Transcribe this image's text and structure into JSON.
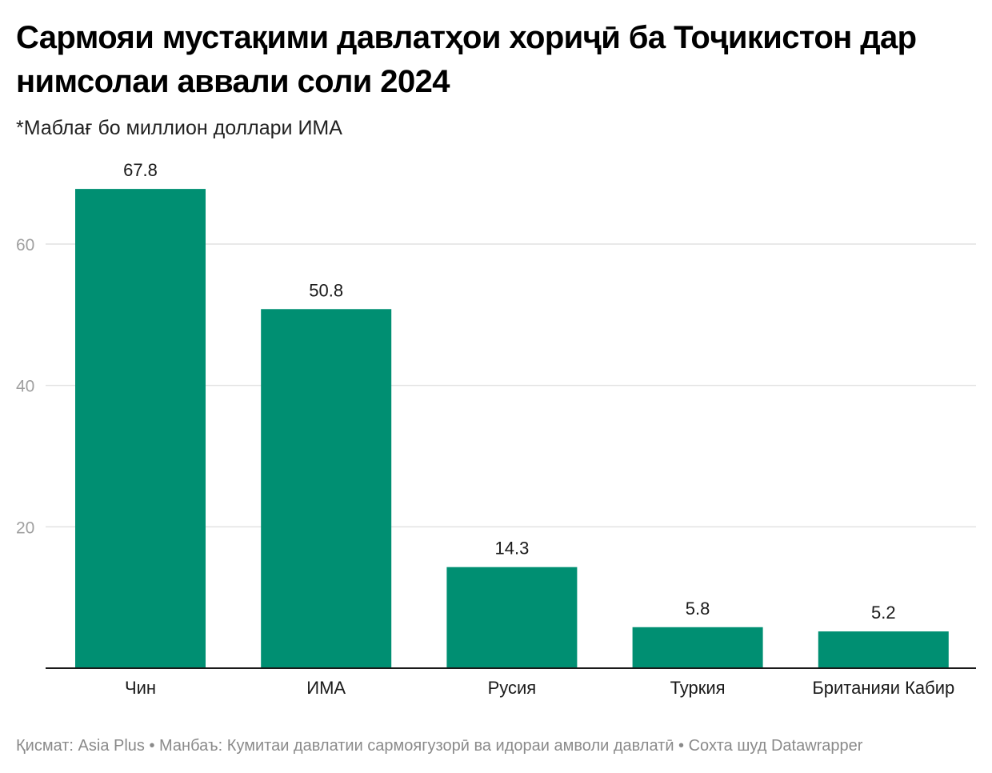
{
  "header": {
    "title": "Сармояи мустақими давлатҳои хориҷӣ ба Тоҷикистон дар нимсолаи аввали соли 2024",
    "subtitle": "*Маблағ бо миллион доллари ИМА"
  },
  "footer": {
    "text": "Қисмат: Asia Plus • Манбаъ: Кумитаи давлатии сармоягузорӣ ва идораи амволи давлатӣ • Сохта шуд Datawrapper"
  },
  "chart_data": {
    "type": "bar",
    "title": "Сармояи мустақими давлатҳои хориҷӣ ба Тоҷикистон дар нимсолаи аввали соли 2024",
    "subtitle": "*Маблағ бо миллион доллари ИМА",
    "xlabel": "",
    "ylabel": "",
    "categories": [
      "Чин",
      "ИМА",
      "Русия",
      "Туркия",
      "Британияи Кабир"
    ],
    "values": [
      67.8,
      50.8,
      14.3,
      5.8,
      5.2
    ],
    "value_labels": [
      "67.8",
      "50.8",
      "14.3",
      "5.8",
      "5.2"
    ],
    "ylim": [
      0,
      60
    ],
    "yticks": [
      20,
      40,
      60
    ],
    "ytick_labels": [
      "20",
      "40",
      "60"
    ],
    "grid": true,
    "legend": "none",
    "bar_color": "#008f72",
    "grid_color": "#e2e2e2",
    "axis_color": "#1a1a1a"
  }
}
